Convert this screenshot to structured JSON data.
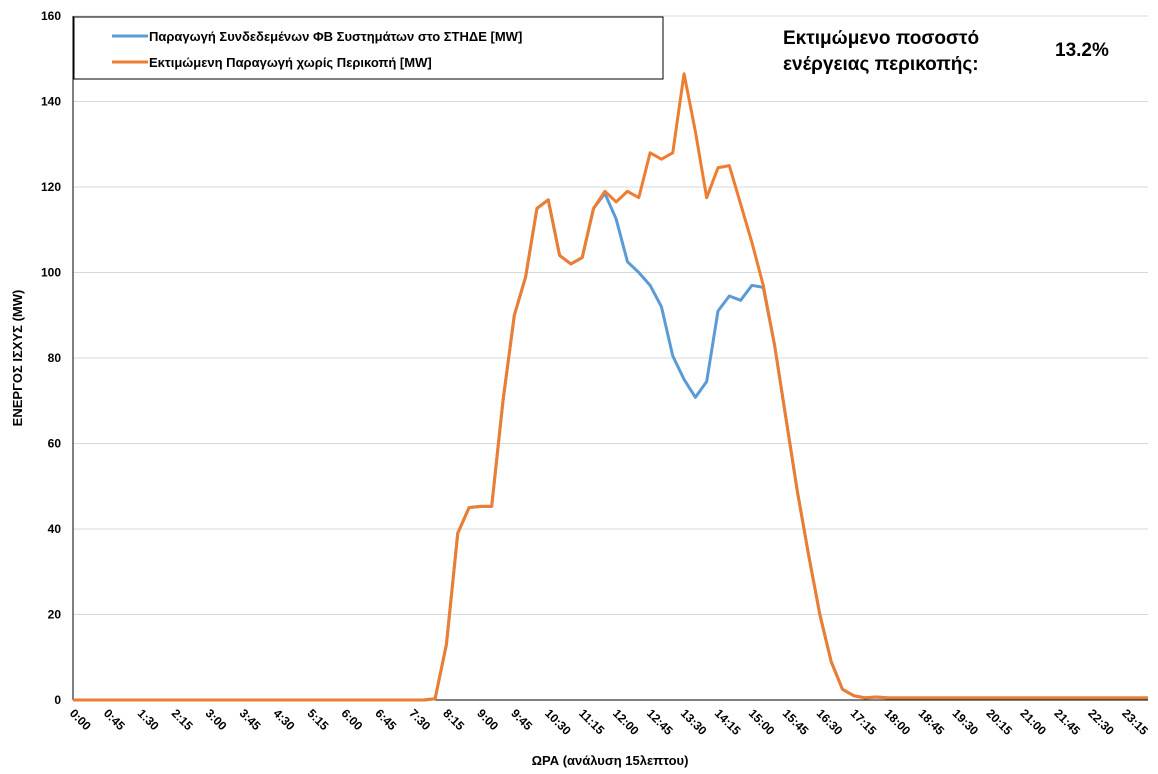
{
  "chart_data": {
    "type": "line",
    "x_label": "ΩΡΑ (ανάλυση 15λεπτου)",
    "y_label": "ΕΝΕΡΓΟΣ ΙΣΧΥΣ (MW)",
    "annotation": {
      "lines": [
        "Εκτιμώμενο ποσοστό",
        "ενέργειας περικοπής:"
      ],
      "value_text": "13.2%"
    },
    "ylim": [
      0,
      160
    ],
    "yticks": [
      0,
      20,
      40,
      60,
      80,
      100,
      120,
      140,
      160
    ],
    "grid": true,
    "legend": "top-left",
    "categories": [
      "0:00",
      null,
      null,
      "0:45",
      null,
      null,
      "1:30",
      null,
      null,
      "2:15",
      null,
      null,
      "3:00",
      null,
      null,
      "3:45",
      null,
      null,
      "4:30",
      null,
      null,
      "5:15",
      null,
      null,
      "6:00",
      null,
      null,
      "6:45",
      null,
      null,
      "7:30",
      null,
      null,
      "8:15",
      null,
      null,
      "9:00",
      null,
      null,
      "9:45",
      null,
      null,
      "10:30",
      null,
      null,
      "11:15",
      null,
      null,
      "12:00",
      null,
      null,
      "12:45",
      null,
      null,
      "13:30",
      null,
      null,
      "14:15",
      null,
      null,
      "15:00",
      null,
      null,
      "15:45",
      null,
      null,
      "16:30",
      null,
      null,
      "17:15",
      null,
      null,
      "18:00",
      null,
      null,
      "18:45",
      null,
      null,
      "19:30",
      null,
      null,
      "20:15",
      null,
      null,
      "21:00",
      null,
      null,
      "21:45",
      null,
      null,
      "22:30",
      null,
      null,
      "23:15",
      null,
      null
    ],
    "series": [
      {
        "name": "Παραγωγή Συνδεδεμένων ΦΒ Συστημάτων στο ΣΤΗΔΕ [MW]",
        "color": "#5b9bd5",
        "values": [
          0,
          0,
          0,
          0,
          0,
          0,
          0,
          0,
          0,
          0,
          0,
          0,
          0,
          0,
          0,
          0,
          0,
          0,
          0,
          0,
          0,
          0,
          0,
          0,
          0,
          0,
          0,
          0,
          0,
          0,
          0,
          0,
          0.3,
          13,
          39,
          45,
          45.3,
          45.3,
          70,
          90,
          99,
          115,
          117,
          104,
          102,
          103.5,
          115,
          118.5,
          112.5,
          102.5,
          100,
          97,
          92,
          80.5,
          75,
          70.8,
          74.5,
          91,
          94.5,
          93.5,
          97,
          96.5,
          83,
          66,
          49,
          34,
          20,
          9,
          2.5,
          1,
          0.5,
          0.7,
          0.5,
          0.5,
          0.5,
          0.5,
          0.5,
          0.5,
          0.5,
          0.5,
          0.5,
          0.5,
          0.5,
          0.5,
          0.5,
          0.5,
          0.5,
          0.5,
          0.5,
          0.5,
          0.5,
          0.5,
          0.5,
          0.5,
          0.5,
          0.5
        ]
      },
      {
        "name": "Εκτιμώμενη Παραγωγή χωρίς Περικοπή [MW]",
        "color": "#ed7d31",
        "values": [
          0,
          0,
          0,
          0,
          0,
          0,
          0,
          0,
          0,
          0,
          0,
          0,
          0,
          0,
          0,
          0,
          0,
          0,
          0,
          0,
          0,
          0,
          0,
          0,
          0,
          0,
          0,
          0,
          0,
          0,
          0,
          0,
          0.3,
          13,
          39,
          45,
          45.3,
          45.3,
          70,
          90,
          99,
          115,
          117,
          104,
          102,
          103.5,
          115,
          119,
          116.5,
          119,
          117.5,
          128,
          126.5,
          128,
          146.5,
          133,
          117.5,
          124.5,
          125,
          116,
          107,
          97,
          83,
          66,
          49,
          34,
          20,
          9,
          2.5,
          1,
          0.5,
          0.7,
          0.5,
          0.5,
          0.5,
          0.5,
          0.5,
          0.5,
          0.5,
          0.5,
          0.5,
          0.5,
          0.5,
          0.5,
          0.5,
          0.5,
          0.5,
          0.5,
          0.5,
          0.5,
          0.5,
          0.5,
          0.5,
          0.5,
          0.5,
          0.5
        ]
      }
    ]
  }
}
